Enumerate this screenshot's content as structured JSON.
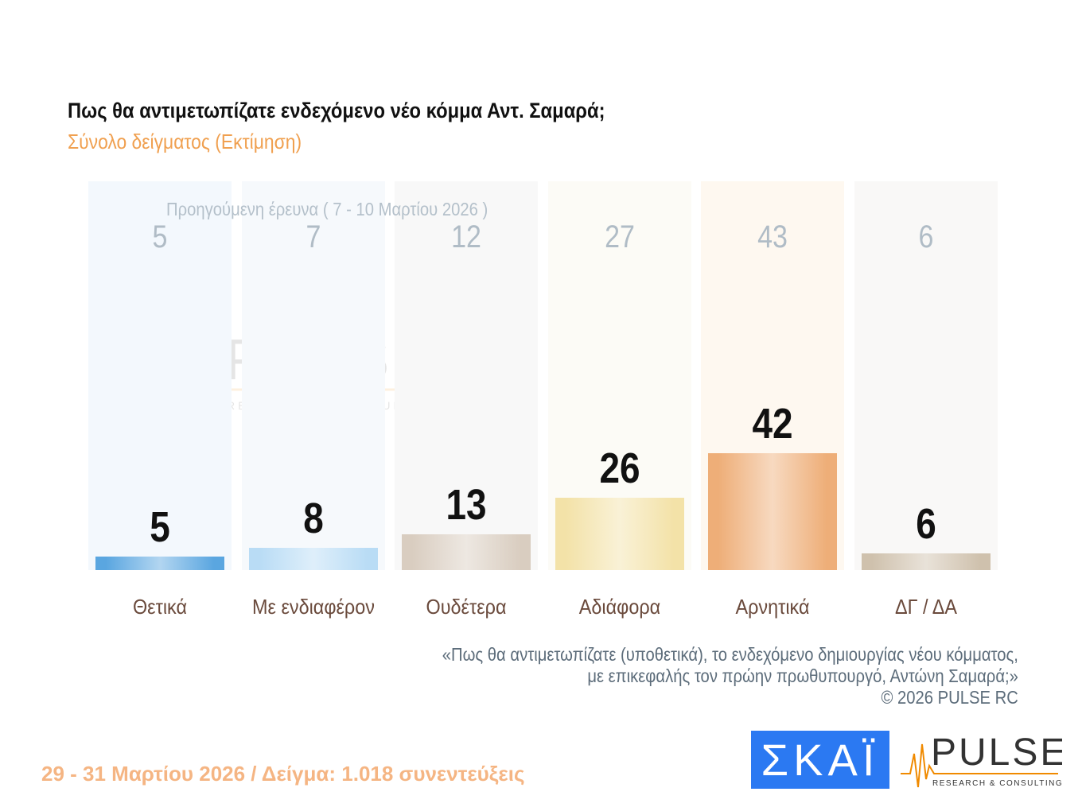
{
  "title": "Πως θα αντιμετωπίζατε ενδεχόμενο νέο κόμμα Αντ. Σαμαρά;",
  "subtitle": "Σύνολο δείγματος  (Εκτίμηση)",
  "chart_data": {
    "type": "bar",
    "title": "Πως θα αντιμετωπίζατε ενδεχόμενο νέο κόμμα Αντ. Σαμαρά;",
    "subtitle": "Σύνολο δείγματος  (Εκτίμηση)",
    "categories": [
      "Θετικά",
      "Με ενδιαφέρον",
      "Ουδέτερα",
      "Αδιάφορα",
      "Αρνητικά",
      "ΔΓ / ΔΑ"
    ],
    "series": [
      {
        "name": "",
        "values": [
          5,
          8,
          13,
          26,
          42,
          6
        ]
      },
      {
        "name": "Προηγούμενη έρευνα ( 7 - 10 Μαρτίου 2026 )",
        "values": [
          5,
          7,
          12,
          27,
          43,
          6
        ]
      }
    ],
    "colors": [
      "#5aa6e0",
      "#b9dcf5",
      "#d9cdc0",
      "#f3e2a8",
      "#eeae78",
      "#cfc1ad"
    ],
    "panel_colors": [
      "#f3f8fd",
      "#f6f9fc",
      "#f8f8f8",
      "#fcfbf6",
      "#fef8f0",
      "#f9f8f7"
    ],
    "ylim": [
      0,
      100
    ],
    "grid": false
  },
  "note": [
    "«Πως θα αντιμετωπίζατε (υποθετικά), το ενδεχόμενο δημιουργίας νέου κόμματος,",
    "με επικεφαλής τον πρώην πρωθυπουργό, Αντώνη Σαμαρά;»",
    "©  2026  PULSE RC"
  ],
  "footer": "29 - 31  Μαρτίου 2026  /  Δείγμα:  1.018 συνεντεύξεις",
  "logos": {
    "skai": "ΣΚΑΪ",
    "pulse": "PULSE",
    "pulse_sub": "RESEARCH & CONSULTING",
    "pulse_tag": "KOSMON"
  }
}
